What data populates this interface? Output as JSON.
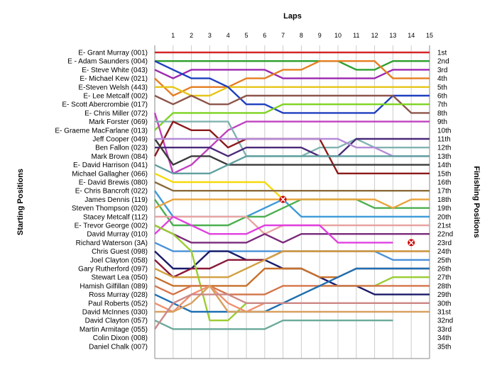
{
  "chart_data": {
    "type": "line",
    "xlabel": "Laps",
    "ylabel_left": "Starting Positions",
    "ylabel_right": "Finishing Positions",
    "laps": [
      1,
      2,
      3,
      4,
      5,
      6,
      7,
      8,
      9,
      10,
      11,
      12,
      13,
      14,
      15
    ],
    "starting_labels": [
      "E- Grant Murray (001)",
      "E - Adam Saunders (004)",
      "E- Steve White (043)",
      "E- Michael Kew (021)",
      "E-Steven Welsh (443)",
      "E- Lee Metcalf (002)",
      "E- Scott Abercrombie (017)",
      "E- Chris Miller (072)",
      "Mark Forster (069)",
      "E- Graeme MacFarlane (013)",
      "Jeff Cooper (049)",
      "Ben Fallon (023)",
      "Mark Brown (084)",
      "E- David Harrison (041)",
      "Michael Gallagher (066)",
      "E- David Brewis (080)",
      "E- Chris Bancroft (022)",
      "James Dennis (119)",
      "Steven Thompson (020)",
      "Stacey Metcalf (112)",
      "E- Trevor George (002)",
      "David Murray (010)",
      "Richard Waterson (3A)",
      "Chris Guest (098)",
      "Joel Clayton (058)",
      "Gary Rutherford (097)",
      "Stewart Lea (050)",
      "Hamish Gilfillan (089)",
      "Ross Murray (028)",
      "Paul Roberts (052)",
      "David McInnes (030)",
      "David Clayton (057)",
      "Martin Armitage (055)",
      "Colin Dixon (008)",
      "Daniel Chalk (007)"
    ],
    "finishing_labels": [
      "1st",
      "2nd",
      "3rd",
      "4th",
      "5th",
      "6th",
      "7th",
      "8th",
      "9th",
      "10th",
      "11th",
      "12th",
      "13th",
      "14th",
      "15th",
      "16th",
      "17th",
      "18th",
      "19th",
      "20th",
      "21st",
      "22nd",
      "23rd",
      "24th",
      "25th",
      "26th",
      "27th",
      "28th",
      "29th",
      "30th",
      "31st",
      "32nd",
      "33rd",
      "34th",
      "35th"
    ],
    "series": [
      {
        "color": "#d62728",
        "positions": [
          1,
          1,
          1,
          1,
          1,
          1,
          1,
          1,
          1,
          1,
          1,
          1,
          1,
          1,
          1,
          1
        ]
      },
      {
        "color": "#2ca02c",
        "positions": [
          2,
          2,
          2,
          2,
          2,
          2,
          2,
          2,
          2,
          2,
          2,
          3,
          3,
          2,
          2,
          2
        ]
      },
      {
        "color": "#9c27b0",
        "positions": [
          3,
          4,
          3,
          3,
          3,
          3,
          3,
          4,
          4,
          4,
          4,
          4,
          4,
          3,
          3,
          3
        ]
      },
      {
        "color": "#e67e22",
        "positions": [
          4,
          6,
          5,
          5,
          5,
          4,
          4,
          3,
          3,
          2,
          2,
          2,
          2,
          4,
          4,
          4
        ]
      },
      {
        "color": "#e6c619",
        "positions": [
          5,
          5,
          6,
          6,
          5,
          5,
          5,
          5,
          5,
          5,
          5,
          5,
          5,
          5,
          5,
          5
        ]
      },
      {
        "color": "#1f3fbf",
        "positions": [
          2,
          3,
          4,
          4,
          5,
          7,
          7,
          8,
          8,
          8,
          8,
          8,
          8,
          6,
          6,
          6
        ]
      },
      {
        "color": "#8c564b",
        "positions": [
          6,
          7,
          6,
          7,
          7,
          6,
          6,
          6,
          6,
          6,
          6,
          6,
          6,
          6,
          8,
          8
        ]
      },
      {
        "color": "#7ed321",
        "positions": [
          10,
          8,
          8,
          8,
          8,
          8,
          8,
          7,
          7,
          7,
          7,
          7,
          7,
          7,
          7,
          7
        ]
      },
      {
        "color": "#c040c0",
        "positions": [
          8,
          15,
          14,
          12,
          10,
          9,
          9,
          9,
          9,
          9,
          9,
          9,
          9,
          9,
          9,
          9
        ]
      },
      {
        "color": "#7fb3b0",
        "positions": [
          9,
          9,
          9,
          9,
          9,
          13,
          13,
          13,
          13,
          12,
          12,
          11,
          12,
          12,
          12,
          12
        ]
      },
      {
        "color": "#8b1a1a",
        "positions": [
          13,
          9,
          10,
          10,
          12,
          11,
          11,
          11,
          11,
          11,
          15,
          15,
          15,
          15,
          15,
          15
        ]
      },
      {
        "color": "#4a2a7a",
        "positions": [
          12,
          12,
          12,
          12,
          13,
          12,
          12,
          12,
          12,
          13,
          13,
          11,
          11,
          11,
          11,
          11
        ]
      },
      {
        "color": "#3a3a3a",
        "positions": [
          11,
          14,
          13,
          13,
          14,
          14,
          14,
          14,
          14,
          14,
          14,
          14,
          14,
          14,
          14,
          14
        ]
      },
      {
        "color": "#b48ad8",
        "positions": [
          11,
          11,
          11,
          11,
          11,
          11,
          11,
          11,
          11,
          11,
          11,
          12,
          12,
          13,
          13,
          13
        ]
      },
      {
        "color": "#5f9f9f",
        "positions": [
          14,
          15,
          15,
          15,
          14,
          13,
          13,
          13,
          13,
          13,
          13,
          13,
          13,
          13,
          13,
          13
        ]
      },
      {
        "color": "#f5d90a",
        "positions": [
          15,
          16,
          16,
          16,
          16,
          16,
          16,
          18,
          null,
          null,
          null,
          null,
          null,
          null,
          null,
          null
        ]
      },
      {
        "color": "#8b6b3a",
        "positions": [
          16,
          17,
          17,
          17,
          17,
          17,
          17,
          17,
          17,
          17,
          17,
          17,
          17,
          17,
          17,
          17
        ]
      },
      {
        "color": "#3c9ad9",
        "positions": [
          17,
          20,
          20,
          20,
          20,
          20,
          19,
          18,
          20,
          20,
          20,
          20,
          20,
          20,
          20,
          20
        ]
      },
      {
        "color": "#4caf50",
        "positions": [
          18,
          21,
          21,
          21,
          21,
          20,
          20,
          19,
          18,
          18,
          18,
          18,
          19,
          19,
          19,
          19
        ]
      },
      {
        "color": "#e8a33a",
        "positions": [
          19,
          18,
          18,
          18,
          18,
          18,
          18,
          18,
          18,
          18,
          18,
          18,
          18,
          19,
          18,
          18
        ]
      },
      {
        "color": "#e8a3a0",
        "positions": [
          20,
          20,
          20,
          20,
          20,
          20,
          22,
          21,
          21,
          21,
          21,
          21,
          21,
          21,
          21,
          21
        ]
      },
      {
        "color": "#7a2a7a",
        "positions": [
          21,
          22,
          23,
          23,
          23,
          23,
          22,
          23,
          22,
          22,
          22,
          22,
          22,
          22,
          22,
          22
        ]
      },
      {
        "color": "#e040e0",
        "positions": [
          22,
          20,
          21,
          22,
          22,
          22,
          21,
          21,
          21,
          21,
          23,
          23,
          23,
          23,
          null,
          null
        ]
      },
      {
        "color": "#4a90d9",
        "positions": [
          23,
          24,
          24,
          24,
          24,
          24,
          24,
          24,
          24,
          24,
          24,
          24,
          24,
          25,
          25,
          25
        ]
      },
      {
        "color": "#1a1a6a",
        "positions": [
          24,
          26,
          26,
          24,
          24,
          25,
          25,
          26,
          26,
          27,
          28,
          28,
          29,
          29,
          29,
          29
        ]
      },
      {
        "color": "#8b1a3a",
        "positions": [
          25,
          27,
          26,
          26,
          25,
          25,
          25,
          24,
          24,
          24,
          24,
          24,
          24,
          24,
          24,
          24
        ]
      },
      {
        "color": "#d2a040",
        "positions": [
          26,
          27,
          27,
          27,
          27,
          26,
          25,
          24,
          24,
          24,
          24,
          24,
          24,
          24,
          24,
          24
        ]
      },
      {
        "color": "#c8702a",
        "positions": [
          27,
          28,
          28,
          28,
          28,
          28,
          26,
          26,
          26,
          27,
          27,
          26,
          26,
          26,
          26,
          26
        ]
      },
      {
        "color": "#9acd32",
        "positions": [
          21,
          22,
          24,
          32,
          32,
          30,
          30,
          30,
          29,
          28,
          28,
          28,
          28,
          27,
          27,
          27
        ]
      },
      {
        "color": "#d4754a",
        "positions": [
          28,
          29,
          28,
          28,
          29,
          29,
          29,
          28,
          28,
          28,
          28,
          28,
          28,
          28,
          28,
          28
        ]
      },
      {
        "color": "#1e6fb5",
        "positions": [
          29,
          30,
          31,
          31,
          31,
          31,
          31,
          30,
          29,
          28,
          27,
          26,
          26,
          26,
          26,
          26
        ]
      },
      {
        "color": "#f09070",
        "positions": [
          30,
          31,
          29,
          28,
          30,
          31,
          30,
          30,
          30,
          30,
          30,
          30,
          30,
          30,
          30,
          30
        ]
      },
      {
        "color": "#d9a060",
        "positions": [
          31,
          31,
          30,
          28,
          31,
          31,
          31,
          31,
          31,
          31,
          31,
          31,
          31,
          31,
          31,
          31
        ]
      },
      {
        "color": "#6aaa9a",
        "positions": [
          32,
          33,
          33,
          33,
          33,
          33,
          33,
          32,
          32,
          32,
          32,
          32,
          32,
          32,
          null,
          null
        ]
      },
      {
        "color": "#cc8888",
        "positions": [
          33,
          30,
          29,
          29,
          29,
          30,
          30,
          30,
          30,
          30,
          30,
          30,
          30,
          30,
          30,
          30
        ]
      }
    ],
    "retirements": [
      {
        "lap": 7,
        "position": 18
      },
      {
        "lap": 14,
        "position": 23
      }
    ]
  }
}
